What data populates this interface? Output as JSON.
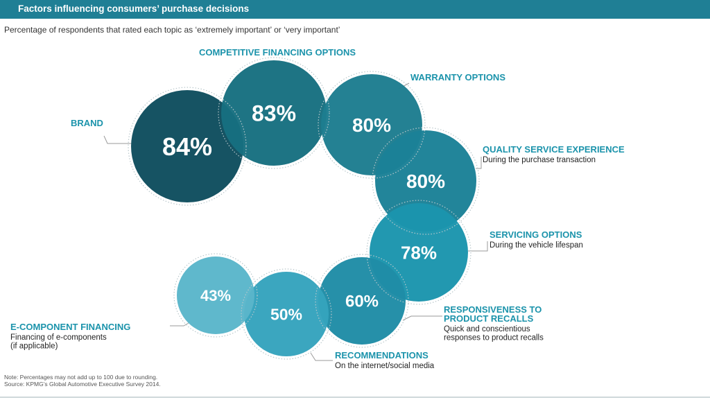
{
  "header": {
    "title": "Factors influencing consumers’ purchase decisions",
    "subtitle": "Percentage of respondents that rated each topic as ‘extremely important’ or ‘very important’"
  },
  "colors": {
    "header_bar": "#1f7f95",
    "label_accent": "#1b93ab",
    "leader_line": "#9a9a9a"
  },
  "chart_data": {
    "type": "bubble",
    "unit": "%",
    "items": [
      {
        "label": "BRAND",
        "sublabel": "",
        "value": 84,
        "display": "84%",
        "color": "#0e4d5e"
      },
      {
        "label": "COMPETITIVE FINANCING OPTIONS",
        "sublabel": "",
        "value": 83,
        "display": "83%",
        "color": "#176f80"
      },
      {
        "label": "WARRANTY OPTIONS",
        "sublabel": "",
        "value": 80,
        "display": "80%",
        "color": "#1d7d8f"
      },
      {
        "label": "QUALITY SERVICE EXPERIENCE",
        "sublabel": "During the purchase transaction",
        "value": 80,
        "display": "80%",
        "color": "#1b8197"
      },
      {
        "label": "SERVICING OPTIONS",
        "sublabel": "During the vehicle lifespan",
        "value": 78,
        "display": "78%",
        "color": "#1b95ad"
      },
      {
        "label": "RESPONSIVENESS TO\nPRODUCT RECALLS",
        "sublabel": "Quick and conscientious\nresponses to product recalls",
        "value": 60,
        "display": "60%",
        "color": "#1f8ca6"
      },
      {
        "label": "RECOMMENDATIONS",
        "sublabel": "On the internet/social media",
        "value": 50,
        "display": "50%",
        "color": "#35a3bd"
      },
      {
        "label": "E-COMPONENT FINANCING",
        "sublabel": "Financing of e-components\n(if applicable)",
        "value": 43,
        "display": "43%",
        "color": "#5ab6ca"
      }
    ]
  },
  "footer": {
    "note": "Note: Percentages may not add up to 100 due to rounding.",
    "source": "Source: KPMG’s Global Automotive Executive Survey 2014."
  }
}
